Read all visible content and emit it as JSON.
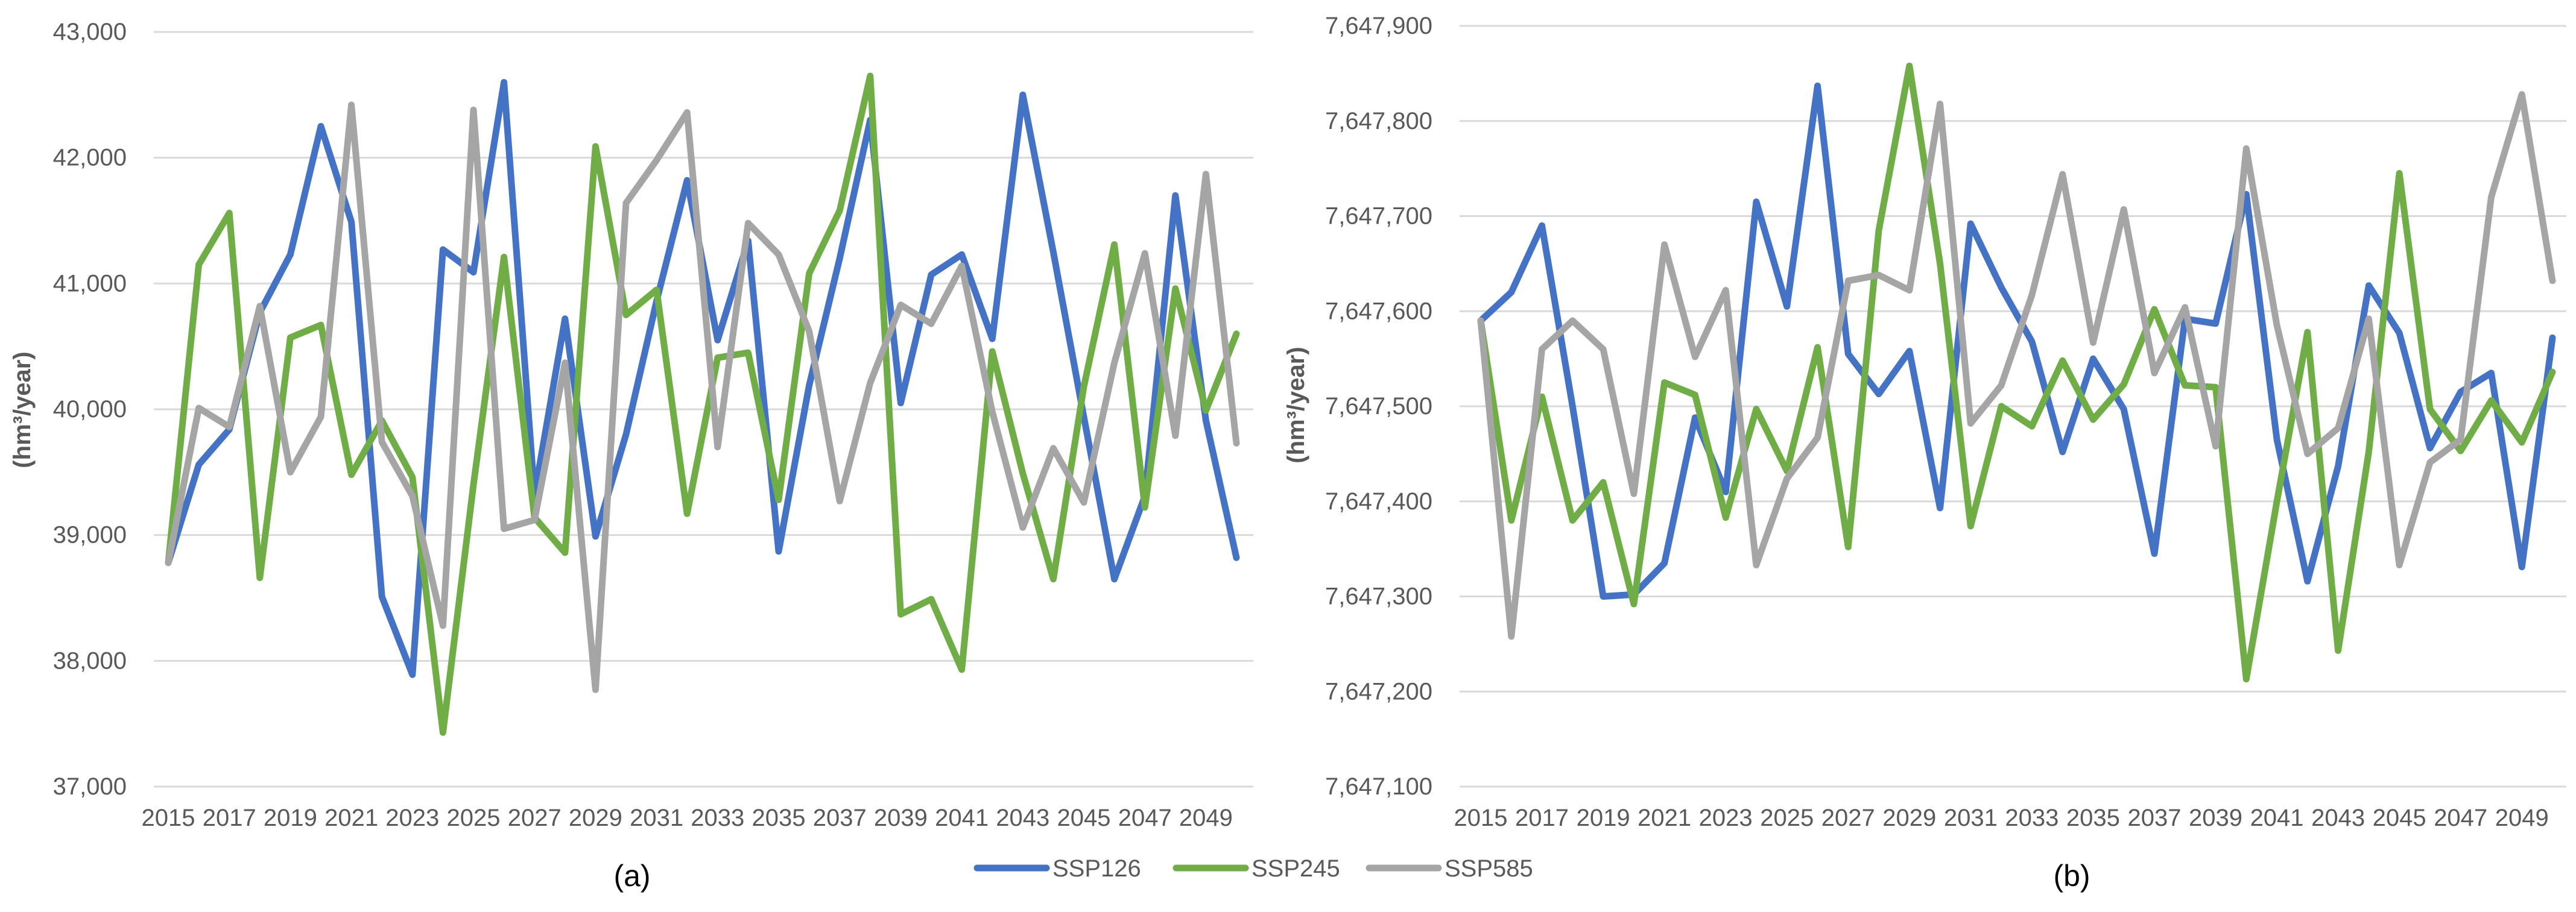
{
  "chart_data": [
    {
      "type": "line",
      "panel_label": "(a)",
      "ylabel": "(hm³/year)",
      "ylim": [
        37000,
        43000
      ],
      "yticks": [
        37000,
        38000,
        39000,
        40000,
        41000,
        42000,
        43000
      ],
      "ytick_labels": [
        "37,000",
        "38,000",
        "39,000",
        "40,000",
        "41,000",
        "42,000",
        "43,000"
      ],
      "x": [
        2015,
        2016,
        2017,
        2018,
        2019,
        2020,
        2021,
        2022,
        2023,
        2024,
        2025,
        2026,
        2027,
        2028,
        2029,
        2030,
        2031,
        2032,
        2033,
        2034,
        2035,
        2036,
        2037,
        2038,
        2039,
        2040,
        2041,
        2042,
        2043,
        2044,
        2045,
        2046,
        2047,
        2048,
        2049,
        2050
      ],
      "xtick_labels": [
        "2015",
        "2017",
        "2019",
        "2021",
        "2023",
        "2025",
        "2027",
        "2029",
        "2031",
        "2033",
        "2035",
        "2037",
        "2039",
        "2041",
        "2043",
        "2045",
        "2047",
        "2049"
      ],
      "grid": true,
      "series": [
        {
          "name": "SSP126",
          "values": [
            38780,
            39560,
            39840,
            40770,
            41230,
            42250,
            41490,
            38510,
            37890,
            41270,
            41090,
            42600,
            39320,
            40720,
            38990,
            39800,
            40860,
            41820,
            40550,
            41340,
            38870,
            40190,
            41200,
            42300,
            40050,
            41070,
            41230,
            40560,
            42500,
            41250,
            39940,
            38650,
            39310,
            41700,
            39910,
            38820
          ]
        },
        {
          "name": "SSP245",
          "values": [
            38780,
            41150,
            41560,
            38660,
            40570,
            40670,
            39480,
            39910,
            39460,
            37430,
            39400,
            41210,
            39140,
            38860,
            42090,
            40750,
            40950,
            39170,
            40410,
            40450,
            39280,
            41080,
            41580,
            42650,
            38370,
            38490,
            37930,
            40460,
            39490,
            38650,
            40180,
            41310,
            39220,
            40960,
            39990,
            40600
          ]
        },
        {
          "name": "SSP585",
          "values": [
            38780,
            40010,
            39860,
            40820,
            39500,
            39940,
            42420,
            39740,
            39310,
            38280,
            42380,
            39050,
            39120,
            40370,
            37770,
            41640,
            41980,
            42360,
            39700,
            41480,
            41230,
            40620,
            39270,
            40210,
            40830,
            40680,
            41140,
            39980,
            39060,
            39690,
            39260,
            40370,
            41240,
            39790,
            41870,
            39730
          ]
        }
      ]
    },
    {
      "type": "line",
      "panel_label": "(b)",
      "ylabel": "(hm³/year)",
      "ylim": [
        7647100,
        7647900
      ],
      "yticks": [
        7647100,
        7647200,
        7647300,
        7647400,
        7647500,
        7647600,
        7647700,
        7647800,
        7647900
      ],
      "ytick_labels": [
        "7,647,100",
        "7,647,200",
        "7,647,300",
        "7,647,400",
        "7,647,500",
        "7,647,600",
        "7,647,700",
        "7,647,800",
        "7,647,900"
      ],
      "x": [
        2015,
        2016,
        2017,
        2018,
        2019,
        2020,
        2021,
        2022,
        2023,
        2024,
        2025,
        2026,
        2027,
        2028,
        2029,
        2030,
        2031,
        2032,
        2033,
        2034,
        2035,
        2036,
        2037,
        2038,
        2039,
        2040,
        2041,
        2042,
        2043,
        2044,
        2045,
        2046,
        2047,
        2048,
        2049,
        2050
      ],
      "xtick_labels": [
        "2015",
        "2017",
        "2019",
        "2021",
        "2023",
        "2025",
        "2027",
        "2029",
        "2031",
        "2033",
        "2035",
        "2037",
        "2039",
        "2041",
        "2043",
        "2045",
        "2047",
        "2049"
      ],
      "grid": true,
      "series": [
        {
          "name": "SSP126",
          "values": [
            7647590,
            7647620,
            7647690,
            7647500,
            7647300,
            7647302,
            7647335,
            7647488,
            7647410,
            7647715,
            7647605,
            7647837,
            7647555,
            7647513,
            7647558,
            7647393,
            7647692,
            7647625,
            7647568,
            7647452,
            7647550,
            7647497,
            7647345,
            7647592,
            7647587,
            7647723,
            7647465,
            7647316,
            7647437,
            7647627,
            7647577,
            7647456,
            7647515,
            7647535,
            7647331,
            7647572
          ]
        },
        {
          "name": "SSP245",
          "values": [
            7647590,
            7647380,
            7647510,
            7647380,
            7647420,
            7647292,
            7647525,
            7647512,
            7647383,
            7647497,
            7647432,
            7647562,
            7647352,
            7647685,
            7647858,
            7647650,
            7647374,
            7647500,
            7647479,
            7647548,
            7647486,
            7647523,
            7647602,
            7647522,
            7647520,
            7647213,
            7647400,
            7647578,
            7647243,
            7647452,
            7647745,
            7647497,
            7647453,
            7647506,
            7647462,
            7647536
          ]
        },
        {
          "name": "SSP585",
          "values": [
            7647590,
            7647258,
            7647560,
            7647590,
            7647560,
            7647408,
            7647670,
            7647552,
            7647622,
            7647333,
            7647424,
            7647467,
            7647632,
            7647638,
            7647622,
            7647818,
            7647482,
            7647522,
            7647617,
            7647744,
            7647567,
            7647707,
            7647535,
            7647604,
            7647458,
            7647771,
            7647585,
            7647450,
            7647477,
            7647592,
            7647333,
            7647441,
            7647465,
            7647720,
            7647828,
            7647632
          ]
        }
      ]
    }
  ],
  "legend": {
    "position": "bottom-center",
    "items": [
      "SSP126",
      "SSP245",
      "SSP585"
    ]
  },
  "colors": {
    "SSP126": "#4472c4",
    "SSP245": "#70ad47",
    "SSP585": "#a5a5a5"
  }
}
